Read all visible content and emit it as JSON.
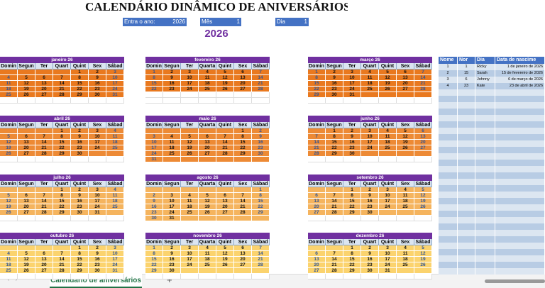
{
  "header": {
    "title": "CALENDÁRIO DINÂMICO DE ANIVERSÁRIOS",
    "year_label": "Entra o ano:",
    "year_value": "2026",
    "month_label": "Mês",
    "month_value": "1",
    "day_label": "Dia",
    "day_value": "1",
    "year_display": "2026"
  },
  "months": [
    {
      "title": "janeiro 26",
      "fill": "#e9791f",
      "weekdays": [
        "Domin",
        "Segun",
        "Ter",
        "Quart",
        "Quint",
        "Sex",
        "Sábad"
      ],
      "weeks": [
        [
          null,
          null,
          null,
          null,
          1,
          2,
          3
        ],
        [
          4,
          5,
          6,
          7,
          8,
          9,
          10
        ],
        [
          11,
          12,
          13,
          14,
          15,
          16,
          17
        ],
        [
          18,
          19,
          20,
          21,
          22,
          23,
          24
        ],
        [
          25,
          26,
          27,
          28,
          29,
          30,
          31
        ]
      ]
    },
    {
      "title": "fevereiro 26",
      "fill": "#e9791f",
      "weekdays": [
        "Domin",
        "Segun",
        "Ter",
        "Quarta",
        "Quint",
        "Sex",
        "Sábad"
      ],
      "weeks": [
        [
          1,
          2,
          3,
          4,
          5,
          6,
          7
        ],
        [
          8,
          9,
          10,
          11,
          12,
          13,
          14
        ],
        [
          15,
          16,
          17,
          18,
          19,
          20,
          21
        ],
        [
          22,
          23,
          24,
          25,
          26,
          27,
          28
        ]
      ]
    },
    {
      "title": "março 26",
      "fill": "#e9791f",
      "weekdays": [
        "Domin",
        "Segun",
        "Ter",
        "Quart",
        "Quint",
        "Sex",
        "Sábad"
      ],
      "weeks": [
        [
          1,
          2,
          3,
          4,
          5,
          6,
          7
        ],
        [
          8,
          9,
          10,
          11,
          12,
          13,
          14
        ],
        [
          15,
          16,
          17,
          18,
          19,
          20,
          21
        ],
        [
          22,
          23,
          24,
          25,
          26,
          27,
          28
        ],
        [
          29,
          30,
          31,
          null,
          null,
          null,
          null
        ]
      ]
    },
    {
      "title": "abril 26",
      "fill": "#ed8a35",
      "weekdays": [
        "Domin",
        "Segun",
        "Ter",
        "Quart",
        "Quint",
        "Sex",
        "Sábad"
      ],
      "weeks": [
        [
          null,
          null,
          null,
          1,
          2,
          3,
          4
        ],
        [
          5,
          6,
          7,
          8,
          9,
          10,
          11
        ],
        [
          12,
          13,
          14,
          15,
          16,
          17,
          18
        ],
        [
          19,
          20,
          21,
          22,
          23,
          24,
          25
        ],
        [
          26,
          27,
          28,
          29,
          30,
          null,
          null
        ]
      ]
    },
    {
      "title": "maio 26",
      "fill": "#ed8a35",
      "weekdays": [
        "Domin",
        "Segun",
        "Ter",
        "Quarta",
        "Quint",
        "Sex",
        "Sábad"
      ],
      "weeks": [
        [
          null,
          null,
          null,
          null,
          null,
          1,
          2
        ],
        [
          3,
          4,
          5,
          6,
          7,
          8,
          9
        ],
        [
          10,
          11,
          12,
          13,
          14,
          15,
          16
        ],
        [
          17,
          18,
          19,
          20,
          21,
          22,
          23
        ],
        [
          24,
          25,
          26,
          27,
          28,
          29,
          30
        ],
        [
          31,
          null,
          null,
          null,
          null,
          null,
          null
        ]
      ]
    },
    {
      "title": "junho 26",
      "fill": "#ed8a35",
      "weekdays": [
        "Domin",
        "Segun",
        "Ter",
        "Quart",
        "Quint",
        "Sex",
        "Sábad"
      ],
      "weeks": [
        [
          null,
          1,
          2,
          3,
          4,
          5,
          6
        ],
        [
          7,
          8,
          9,
          10,
          11,
          12,
          13
        ],
        [
          14,
          15,
          16,
          17,
          18,
          19,
          20
        ],
        [
          21,
          22,
          23,
          24,
          25,
          26,
          27
        ],
        [
          28,
          29,
          30,
          null,
          null,
          null,
          null
        ]
      ]
    },
    {
      "title": "julho 26",
      "fill": "#f5b45e",
      "weekdays": [
        "Domin",
        "Segun",
        "Ter",
        "Quart",
        "Quint",
        "Sex",
        "Sábad"
      ],
      "weeks": [
        [
          null,
          null,
          null,
          1,
          2,
          3,
          4
        ],
        [
          5,
          6,
          7,
          8,
          9,
          10,
          11
        ],
        [
          12,
          13,
          14,
          15,
          16,
          17,
          18
        ],
        [
          19,
          20,
          21,
          22,
          23,
          24,
          25
        ],
        [
          26,
          27,
          28,
          29,
          30,
          31,
          null
        ]
      ]
    },
    {
      "title": "agosto 26",
      "fill": "#f5b45e",
      "weekdays": [
        "Domin",
        "Segun",
        "Ter",
        "Quarta",
        "Quint",
        "Sex",
        "Sábad"
      ],
      "weeks": [
        [
          null,
          null,
          null,
          null,
          null,
          null,
          1
        ],
        [
          2,
          3,
          4,
          5,
          6,
          7,
          8
        ],
        [
          9,
          10,
          11,
          12,
          13,
          14,
          15
        ],
        [
          16,
          17,
          18,
          19,
          20,
          21,
          22
        ],
        [
          23,
          24,
          25,
          26,
          27,
          28,
          29
        ],
        [
          30,
          31,
          null,
          null,
          null,
          null,
          null
        ]
      ]
    },
    {
      "title": "setembro 26",
      "fill": "#f5b45e",
      "weekdays": [
        "Domin",
        "Segun",
        "Ter",
        "Quart",
        "Quint",
        "Sex",
        "Sábad"
      ],
      "weeks": [
        [
          null,
          null,
          1,
          2,
          3,
          4,
          5
        ],
        [
          6,
          7,
          8,
          9,
          10,
          11,
          12
        ],
        [
          13,
          14,
          15,
          16,
          17,
          18,
          19
        ],
        [
          20,
          21,
          22,
          23,
          24,
          25,
          26
        ],
        [
          27,
          28,
          29,
          30,
          null,
          null,
          null
        ]
      ]
    },
    {
      "title": "outubro 26",
      "fill": "#fbd36e",
      "weekdays": [
        "Domin",
        "Segun",
        "Ter",
        "Quart",
        "Quint",
        "Sex",
        "Sábad"
      ],
      "weeks": [
        [
          null,
          null,
          null,
          null,
          1,
          2,
          3
        ],
        [
          4,
          5,
          6,
          7,
          8,
          9,
          10
        ],
        [
          11,
          12,
          13,
          14,
          15,
          16,
          17
        ],
        [
          18,
          19,
          20,
          21,
          22,
          23,
          24
        ],
        [
          25,
          26,
          27,
          28,
          29,
          30,
          31
        ]
      ]
    },
    {
      "title": "novembro 26",
      "fill": "#fbd36e",
      "weekdays": [
        "Domin",
        "Segun",
        "Ter",
        "Quarta",
        "Quint",
        "Sex",
        "Sábad"
      ],
      "weeks": [
        [
          1,
          2,
          3,
          4,
          5,
          6,
          7
        ],
        [
          8,
          9,
          10,
          11,
          12,
          13,
          14
        ],
        [
          15,
          16,
          17,
          18,
          19,
          20,
          21
        ],
        [
          22,
          23,
          24,
          25,
          26,
          27,
          28
        ],
        [
          29,
          30,
          null,
          null,
          null,
          null,
          null
        ]
      ]
    },
    {
      "title": "dezembro 26",
      "fill": "#fbd36e",
      "weekdays": [
        "Domin",
        "Segun",
        "Ter",
        "Quart",
        "Quint",
        "Sex",
        "Sábad"
      ],
      "weeks": [
        [
          null,
          null,
          1,
          2,
          3,
          4,
          5
        ],
        [
          6,
          7,
          8,
          9,
          10,
          11,
          12
        ],
        [
          13,
          14,
          15,
          16,
          17,
          18,
          19
        ],
        [
          20,
          21,
          22,
          23,
          24,
          25,
          26
        ],
        [
          27,
          28,
          29,
          30,
          31,
          null,
          null
        ]
      ]
    }
  ],
  "table": {
    "columns": [
      "Nome",
      "Nor",
      "Dia",
      "Data de nascime"
    ],
    "rows": [
      [
        1,
        1,
        "Ricky",
        "1 de janeiro de 2026"
      ],
      [
        2,
        15,
        "Sarah",
        "15 de fevereiro de 2026"
      ],
      [
        3,
        6,
        "Johnny",
        "6 de março de 2026"
      ],
      [
        4,
        23,
        "Kate",
        "23 de abril de 2026"
      ]
    ]
  },
  "tabs": {
    "sheet": "Calendário de aniversários",
    "add": "+"
  }
}
